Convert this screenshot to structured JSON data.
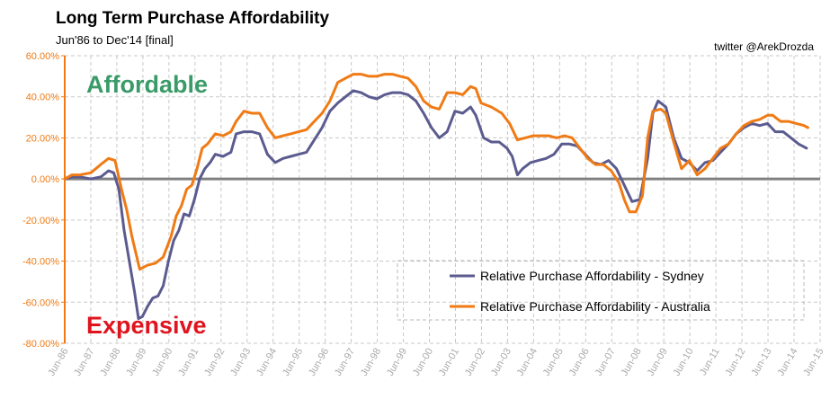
{
  "header": {
    "title": "Long Term Purchase Affordability",
    "subtitle": "Jun'86 to Dec'14 [final]",
    "credit": "twitter @ArekDrozda"
  },
  "colors": {
    "sydney": "#5b5b8f",
    "australia": "#f07a14",
    "axis": "#f07a14",
    "zero_line": "#808080",
    "affordable": "#3a9b68",
    "expensive": "#e0141e"
  },
  "chart_data": {
    "type": "line",
    "title": "Long Term Purchase Affordability",
    "subtitle": "Jun'86 to Dec'14 [final]",
    "xlabel": "",
    "ylabel": "",
    "ylim": [
      -80,
      60
    ],
    "xlim": [
      1986.42,
      2015.42
    ],
    "grid": true,
    "legend_position": "bottom-right",
    "y_ticks": [
      "60.00%",
      "40.00%",
      "20.00%",
      "0.00%",
      "-20.00%",
      "-40.00%",
      "-60.00%",
      "-80.00%"
    ],
    "x_ticks": [
      "Jun-86",
      "Jun-87",
      "Jun-88",
      "Jun-89",
      "Jun-90",
      "Jun-91",
      "Jun-92",
      "Jun-93",
      "Jun-94",
      "Jun-95",
      "Jun-96",
      "Jun-97",
      "Jun-98",
      "Jun-99",
      "Jun-00",
      "Jun-01",
      "Jun-02",
      "Jun-03",
      "Jun-04",
      "Jun-05",
      "Jun-06",
      "Jun-07",
      "Jun-08",
      "Jun-09",
      "Jun-10",
      "Jun-11",
      "Jun-12",
      "Jun-13",
      "Jun-14",
      "Jun-15"
    ],
    "annotations": [
      "Affordable",
      "Expensive"
    ],
    "series": [
      {
        "name": "Relative Purchase Affordability - Sydney",
        "points": [
          [
            1986.42,
            0
          ],
          [
            1986.7,
            1
          ],
          [
            1987.0,
            1
          ],
          [
            1987.42,
            0
          ],
          [
            1987.8,
            1
          ],
          [
            1988.1,
            4
          ],
          [
            1988.3,
            3
          ],
          [
            1988.5,
            -5
          ],
          [
            1988.7,
            -25
          ],
          [
            1988.9,
            -40
          ],
          [
            1989.1,
            -55
          ],
          [
            1989.25,
            -68
          ],
          [
            1989.4,
            -67
          ],
          [
            1989.6,
            -62
          ],
          [
            1989.8,
            -58
          ],
          [
            1990.0,
            -57
          ],
          [
            1990.2,
            -52
          ],
          [
            1990.4,
            -40
          ],
          [
            1990.6,
            -30
          ],
          [
            1990.8,
            -25
          ],
          [
            1991.0,
            -17
          ],
          [
            1991.2,
            -18
          ],
          [
            1991.4,
            -10
          ],
          [
            1991.6,
            0
          ],
          [
            1991.8,
            5
          ],
          [
            1992.0,
            8
          ],
          [
            1992.2,
            12
          ],
          [
            1992.5,
            11
          ],
          [
            1992.8,
            13
          ],
          [
            1993.0,
            22
          ],
          [
            1993.3,
            23
          ],
          [
            1993.6,
            23
          ],
          [
            1993.9,
            22
          ],
          [
            1994.2,
            12
          ],
          [
            1994.5,
            8
          ],
          [
            1994.8,
            10
          ],
          [
            1995.1,
            11
          ],
          [
            1995.4,
            12
          ],
          [
            1995.7,
            13
          ],
          [
            1996.0,
            19
          ],
          [
            1996.3,
            25
          ],
          [
            1996.6,
            33
          ],
          [
            1996.9,
            37
          ],
          [
            1997.2,
            40
          ],
          [
            1997.5,
            43
          ],
          [
            1997.8,
            42
          ],
          [
            1998.1,
            40
          ],
          [
            1998.4,
            39
          ],
          [
            1998.7,
            41
          ],
          [
            1999.0,
            42
          ],
          [
            1999.3,
            42
          ],
          [
            1999.6,
            41
          ],
          [
            1999.9,
            38
          ],
          [
            2000.2,
            32
          ],
          [
            2000.5,
            25
          ],
          [
            2000.8,
            20
          ],
          [
            2001.1,
            23
          ],
          [
            2001.4,
            33
          ],
          [
            2001.7,
            32
          ],
          [
            2002.0,
            35
          ],
          [
            2002.2,
            31
          ],
          [
            2002.5,
            20
          ],
          [
            2002.8,
            18
          ],
          [
            2003.1,
            18
          ],
          [
            2003.4,
            15
          ],
          [
            2003.6,
            11
          ],
          [
            2003.8,
            2
          ],
          [
            2004.0,
            5
          ],
          [
            2004.3,
            8
          ],
          [
            2004.6,
            9
          ],
          [
            2004.9,
            10
          ],
          [
            2005.2,
            12
          ],
          [
            2005.5,
            17
          ],
          [
            2005.8,
            17
          ],
          [
            2006.1,
            16
          ],
          [
            2006.4,
            12
          ],
          [
            2006.7,
            8
          ],
          [
            2007.0,
            7
          ],
          [
            2007.3,
            9
          ],
          [
            2007.6,
            5
          ],
          [
            2007.9,
            -3
          ],
          [
            2008.2,
            -11
          ],
          [
            2008.5,
            -10
          ],
          [
            2008.8,
            10
          ],
          [
            2009.0,
            32
          ],
          [
            2009.2,
            38
          ],
          [
            2009.5,
            35
          ],
          [
            2009.8,
            20
          ],
          [
            2010.1,
            10
          ],
          [
            2010.4,
            8
          ],
          [
            2010.7,
            4
          ],
          [
            2011.0,
            8
          ],
          [
            2011.3,
            9
          ],
          [
            2011.6,
            13
          ],
          [
            2011.9,
            17
          ],
          [
            2012.2,
            22
          ],
          [
            2012.5,
            25
          ],
          [
            2012.8,
            27
          ],
          [
            2013.1,
            26
          ],
          [
            2013.4,
            27
          ],
          [
            2013.7,
            23
          ],
          [
            2014.0,
            23
          ],
          [
            2014.3,
            20
          ],
          [
            2014.6,
            17
          ],
          [
            2014.9,
            15
          ]
        ]
      },
      {
        "name": "Relative Purchase Affordability - Australia",
        "points": [
          [
            1986.42,
            0
          ],
          [
            1986.7,
            2
          ],
          [
            1987.0,
            2
          ],
          [
            1987.42,
            3
          ],
          [
            1987.8,
            7
          ],
          [
            1988.1,
            10
          ],
          [
            1988.35,
            9
          ],
          [
            1988.6,
            -5
          ],
          [
            1988.8,
            -15
          ],
          [
            1989.0,
            -28
          ],
          [
            1989.3,
            -44
          ],
          [
            1989.6,
            -42
          ],
          [
            1989.9,
            -41
          ],
          [
            1990.2,
            -38
          ],
          [
            1990.5,
            -28
          ],
          [
            1990.7,
            -18
          ],
          [
            1990.9,
            -13
          ],
          [
            1991.1,
            -5
          ],
          [
            1991.3,
            -3
          ],
          [
            1991.5,
            5
          ],
          [
            1991.7,
            15
          ],
          [
            1991.9,
            17
          ],
          [
            1992.2,
            22
          ],
          [
            1992.5,
            21
          ],
          [
            1992.8,
            23
          ],
          [
            1993.0,
            28
          ],
          [
            1993.3,
            33
          ],
          [
            1993.6,
            32
          ],
          [
            1993.9,
            32
          ],
          [
            1994.2,
            25
          ],
          [
            1994.5,
            20
          ],
          [
            1994.8,
            21
          ],
          [
            1995.1,
            22
          ],
          [
            1995.4,
            23
          ],
          [
            1995.7,
            24
          ],
          [
            1996.0,
            28
          ],
          [
            1996.3,
            32
          ],
          [
            1996.6,
            38
          ],
          [
            1996.9,
            47
          ],
          [
            1997.2,
            49
          ],
          [
            1997.5,
            51
          ],
          [
            1997.8,
            51
          ],
          [
            1998.1,
            50
          ],
          [
            1998.4,
            50
          ],
          [
            1998.7,
            51
          ],
          [
            1999.0,
            51
          ],
          [
            1999.3,
            50
          ],
          [
            1999.6,
            49
          ],
          [
            1999.9,
            45
          ],
          [
            2000.2,
            38
          ],
          [
            2000.5,
            35
          ],
          [
            2000.8,
            34
          ],
          [
            2001.1,
            42
          ],
          [
            2001.4,
            42
          ],
          [
            2001.7,
            41
          ],
          [
            2002.0,
            45
          ],
          [
            2002.2,
            44
          ],
          [
            2002.4,
            37
          ],
          [
            2002.8,
            35
          ],
          [
            2003.2,
            32
          ],
          [
            2003.5,
            27
          ],
          [
            2003.8,
            19
          ],
          [
            2004.1,
            20
          ],
          [
            2004.4,
            21
          ],
          [
            2004.7,
            21
          ],
          [
            2005.0,
            21
          ],
          [
            2005.3,
            20
          ],
          [
            2005.6,
            21
          ],
          [
            2005.9,
            20
          ],
          [
            2006.2,
            15
          ],
          [
            2006.5,
            10
          ],
          [
            2006.8,
            7
          ],
          [
            2007.1,
            7
          ],
          [
            2007.4,
            4
          ],
          [
            2007.7,
            -2
          ],
          [
            2007.9,
            -10
          ],
          [
            2008.1,
            -16
          ],
          [
            2008.35,
            -16
          ],
          [
            2008.6,
            -8
          ],
          [
            2008.8,
            20
          ],
          [
            2009.0,
            33
          ],
          [
            2009.3,
            34
          ],
          [
            2009.5,
            32
          ],
          [
            2009.8,
            18
          ],
          [
            2010.1,
            5
          ],
          [
            2010.4,
            9
          ],
          [
            2010.7,
            2
          ],
          [
            2011.0,
            5
          ],
          [
            2011.3,
            10
          ],
          [
            2011.6,
            15
          ],
          [
            2011.9,
            17
          ],
          [
            2012.2,
            22
          ],
          [
            2012.5,
            26
          ],
          [
            2012.8,
            28
          ],
          [
            2013.1,
            29
          ],
          [
            2013.4,
            31
          ],
          [
            2013.6,
            31
          ],
          [
            2013.9,
            28
          ],
          [
            2014.2,
            28
          ],
          [
            2014.5,
            27
          ],
          [
            2014.8,
            26
          ],
          [
            2014.95,
            25
          ]
        ]
      }
    ]
  }
}
